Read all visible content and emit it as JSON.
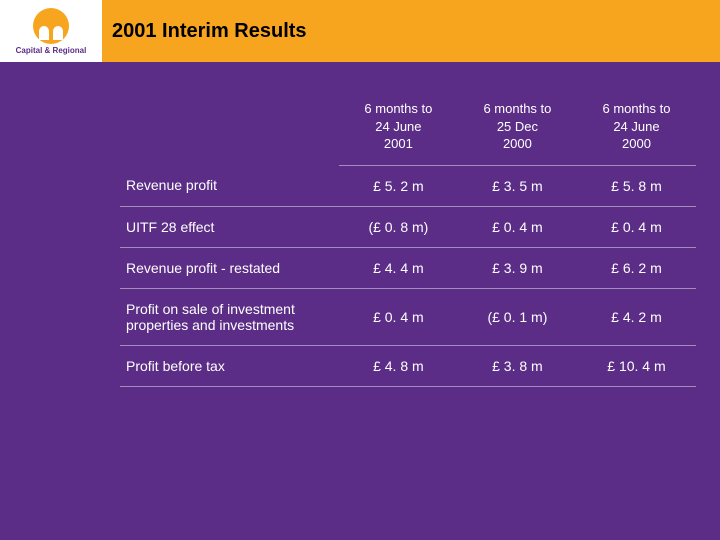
{
  "colors": {
    "header_bg": "#f7a51f",
    "body_bg": "#5b2d86",
    "strip_bg": "#5b2d86",
    "text": "#ffffff",
    "gridline": "#a58cc0",
    "title_text": "#000000"
  },
  "logo": {
    "name": "Capital & Regional"
  },
  "title": "2001 Interim Results",
  "table": {
    "type": "table",
    "font_size_header": 13,
    "font_size_body": 14,
    "columns": [
      {
        "label": ""
      },
      {
        "label": "6 months to\n24 June\n2001"
      },
      {
        "label": "6 months to\n25 Dec\n2000"
      },
      {
        "label": "6 months to\n24 June\n2000"
      }
    ],
    "rows": [
      {
        "label": "Revenue profit",
        "values": [
          "£ 5. 2 m",
          "£ 3. 5 m",
          "£ 5. 8 m"
        ]
      },
      {
        "label": "UITF 28 effect",
        "values": [
          "(£ 0. 8 m)",
          "£ 0. 4 m",
          "£ 0. 4 m"
        ]
      },
      {
        "label": "Revenue profit - restated",
        "values": [
          "£ 4. 4 m",
          "£ 3. 9 m",
          "£ 6. 2 m"
        ]
      },
      {
        "label": "Profit on sale of investment properties and investments",
        "values": [
          "£ 0. 4 m",
          "(£ 0. 1 m)",
          "£ 4. 2 m"
        ]
      },
      {
        "label": "Profit before tax",
        "values": [
          "£ 4. 8 m",
          "£ 3. 8 m",
          "£ 10. 4 m"
        ]
      }
    ]
  }
}
